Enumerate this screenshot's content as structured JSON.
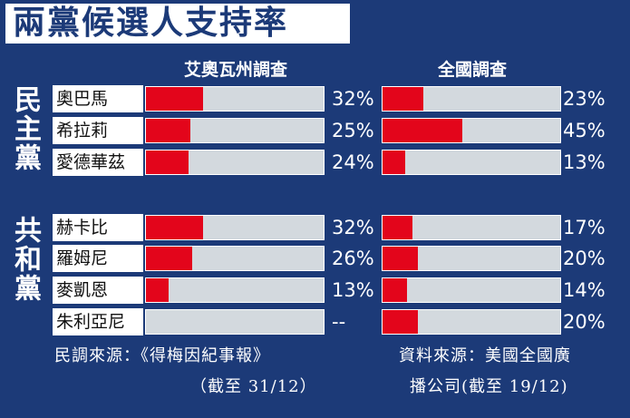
{
  "title": "兩黨候選人支持率",
  "chart_data": {
    "type": "bar",
    "title": "兩黨候選人支持率",
    "groups": [
      {
        "name": "民主黨",
        "candidates": [
          "奧巴馬",
          "希拉莉",
          "愛德華茲"
        ]
      },
      {
        "name": "共和黨",
        "candidates": [
          "赫卡比",
          "羅姆尼",
          "麥凱恩",
          "朱利亞尼"
        ]
      }
    ],
    "categories": [
      "奧巴馬",
      "希拉莉",
      "愛德華茲",
      "赫卡比",
      "羅姆尼",
      "麥凱恩",
      "朱利亞尼"
    ],
    "series": [
      {
        "name": "艾奧瓦州調查",
        "values": [
          32,
          25,
          24,
          32,
          26,
          13,
          null
        ],
        "labels": [
          "32%",
          "25%",
          "24%",
          "32%",
          "26%",
          "13%",
          "--"
        ]
      },
      {
        "name": "全國調查",
        "values": [
          23,
          45,
          13,
          17,
          20,
          14,
          20
        ],
        "labels": [
          "23%",
          "45%",
          "13%",
          "17%",
          "20%",
          "14%",
          "20%"
        ]
      }
    ],
    "ylim": [
      0,
      100
    ],
    "colors": {
      "fill": "#e3051b",
      "track": "#d3d9de",
      "background": "#1c3a78"
    }
  },
  "footer": {
    "left_line1": "民調來源：《得梅因紀事報》",
    "left_line2": "（截至 31/12）",
    "right_line1": "資料來源：美國全國廣",
    "right_line2": "播公司(截至 19/12)"
  }
}
